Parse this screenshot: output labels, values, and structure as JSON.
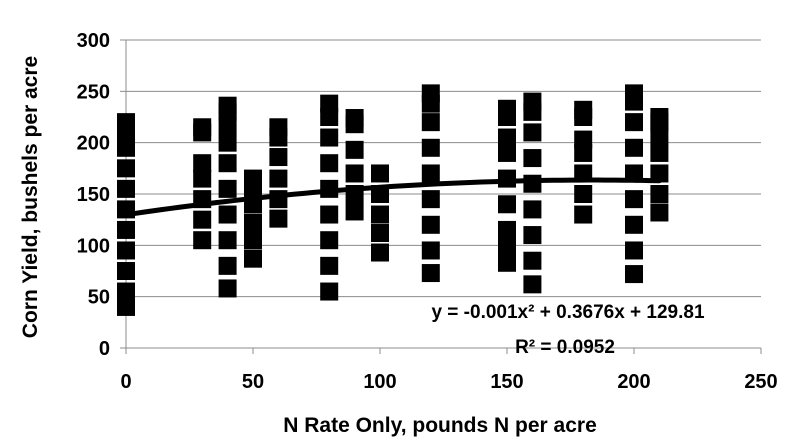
{
  "chart_data": {
    "type": "scatter",
    "xlabel": "N Rate Only, pounds N per acre",
    "ylabel": "Corn Yield, bushels per acre",
    "xlim": [
      0,
      250
    ],
    "ylim": [
      0,
      300
    ],
    "x_ticks": [
      "0",
      "50",
      "100",
      "150",
      "200",
      "250"
    ],
    "y_ticks": [
      "0",
      "50",
      "100",
      "150",
      "200",
      "250",
      "300"
    ],
    "grid": "horizontal",
    "legend": "none",
    "marker_color": "#000000",
    "series": [
      {
        "points": [
          {
            "x": 0,
            "y": 40
          },
          {
            "x": 0,
            "y": 55
          },
          {
            "x": 0,
            "y": 75
          },
          {
            "x": 0,
            "y": 95
          },
          {
            "x": 0,
            "y": 115
          },
          {
            "x": 0,
            "y": 135
          },
          {
            "x": 0,
            "y": 155
          },
          {
            "x": 0,
            "y": 175
          },
          {
            "x": 0,
            "y": 195
          },
          {
            "x": 0,
            "y": 205
          },
          {
            "x": 0,
            "y": 212
          },
          {
            "x": 0,
            "y": 220
          },
          {
            "x": 30,
            "y": 105
          },
          {
            "x": 30,
            "y": 125
          },
          {
            "x": 30,
            "y": 145
          },
          {
            "x": 30,
            "y": 165
          },
          {
            "x": 30,
            "y": 180
          },
          {
            "x": 30,
            "y": 210
          },
          {
            "x": 30,
            "y": 215
          },
          {
            "x": 40,
            "y": 58
          },
          {
            "x": 40,
            "y": 80
          },
          {
            "x": 40,
            "y": 105
          },
          {
            "x": 40,
            "y": 130
          },
          {
            "x": 40,
            "y": 155
          },
          {
            "x": 40,
            "y": 180
          },
          {
            "x": 40,
            "y": 200
          },
          {
            "x": 40,
            "y": 217
          },
          {
            "x": 40,
            "y": 230
          },
          {
            "x": 40,
            "y": 236
          },
          {
            "x": 50,
            "y": 87
          },
          {
            "x": 50,
            "y": 105
          },
          {
            "x": 50,
            "y": 122
          },
          {
            "x": 50,
            "y": 140
          },
          {
            "x": 50,
            "y": 155
          },
          {
            "x": 50,
            "y": 165
          },
          {
            "x": 60,
            "y": 126
          },
          {
            "x": 60,
            "y": 145
          },
          {
            "x": 60,
            "y": 165
          },
          {
            "x": 60,
            "y": 186
          },
          {
            "x": 60,
            "y": 205
          },
          {
            "x": 60,
            "y": 215
          },
          {
            "x": 80,
            "y": 55
          },
          {
            "x": 80,
            "y": 80
          },
          {
            "x": 80,
            "y": 105
          },
          {
            "x": 80,
            "y": 130
          },
          {
            "x": 80,
            "y": 155
          },
          {
            "x": 80,
            "y": 180
          },
          {
            "x": 80,
            "y": 205
          },
          {
            "x": 80,
            "y": 225
          },
          {
            "x": 80,
            "y": 238
          },
          {
            "x": 90,
            "y": 133
          },
          {
            "x": 90,
            "y": 150
          },
          {
            "x": 90,
            "y": 170
          },
          {
            "x": 90,
            "y": 193
          },
          {
            "x": 90,
            "y": 218
          },
          {
            "x": 90,
            "y": 224
          },
          {
            "x": 100,
            "y": 93
          },
          {
            "x": 100,
            "y": 112
          },
          {
            "x": 100,
            "y": 130
          },
          {
            "x": 100,
            "y": 150
          },
          {
            "x": 100,
            "y": 170
          },
          {
            "x": 120,
            "y": 73
          },
          {
            "x": 120,
            "y": 95
          },
          {
            "x": 120,
            "y": 120
          },
          {
            "x": 120,
            "y": 145
          },
          {
            "x": 120,
            "y": 170
          },
          {
            "x": 120,
            "y": 195
          },
          {
            "x": 120,
            "y": 220
          },
          {
            "x": 120,
            "y": 238
          },
          {
            "x": 120,
            "y": 248
          },
          {
            "x": 150,
            "y": 83
          },
          {
            "x": 150,
            "y": 98
          },
          {
            "x": 150,
            "y": 115
          },
          {
            "x": 150,
            "y": 140
          },
          {
            "x": 150,
            "y": 165
          },
          {
            "x": 150,
            "y": 190
          },
          {
            "x": 150,
            "y": 205
          },
          {
            "x": 150,
            "y": 225
          },
          {
            "x": 150,
            "y": 233
          },
          {
            "x": 160,
            "y": 62
          },
          {
            "x": 160,
            "y": 85
          },
          {
            "x": 160,
            "y": 110
          },
          {
            "x": 160,
            "y": 135
          },
          {
            "x": 160,
            "y": 160
          },
          {
            "x": 160,
            "y": 185
          },
          {
            "x": 160,
            "y": 210
          },
          {
            "x": 160,
            "y": 230
          },
          {
            "x": 160,
            "y": 240
          },
          {
            "x": 180,
            "y": 130
          },
          {
            "x": 180,
            "y": 150
          },
          {
            "x": 180,
            "y": 170
          },
          {
            "x": 180,
            "y": 190
          },
          {
            "x": 180,
            "y": 203
          },
          {
            "x": 180,
            "y": 225
          },
          {
            "x": 180,
            "y": 232
          },
          {
            "x": 200,
            "y": 72
          },
          {
            "x": 200,
            "y": 95
          },
          {
            "x": 200,
            "y": 120
          },
          {
            "x": 200,
            "y": 145
          },
          {
            "x": 200,
            "y": 170
          },
          {
            "x": 200,
            "y": 195
          },
          {
            "x": 200,
            "y": 220
          },
          {
            "x": 200,
            "y": 240
          },
          {
            "x": 200,
            "y": 248
          },
          {
            "x": 210,
            "y": 132
          },
          {
            "x": 210,
            "y": 150
          },
          {
            "x": 210,
            "y": 170
          },
          {
            "x": 210,
            "y": 190
          },
          {
            "x": 210,
            "y": 207
          },
          {
            "x": 210,
            "y": 220
          },
          {
            "x": 210,
            "y": 225
          }
        ]
      }
    ],
    "trendline": {
      "type": "polynomial",
      "order": 2,
      "a": -0.001,
      "b": 0.3676,
      "c": 129.81,
      "x_range": [
        0,
        210
      ],
      "equation": "y = -0.001x² + 0.3676x + 129.81",
      "r_squared": "R² = 0.0952"
    }
  }
}
